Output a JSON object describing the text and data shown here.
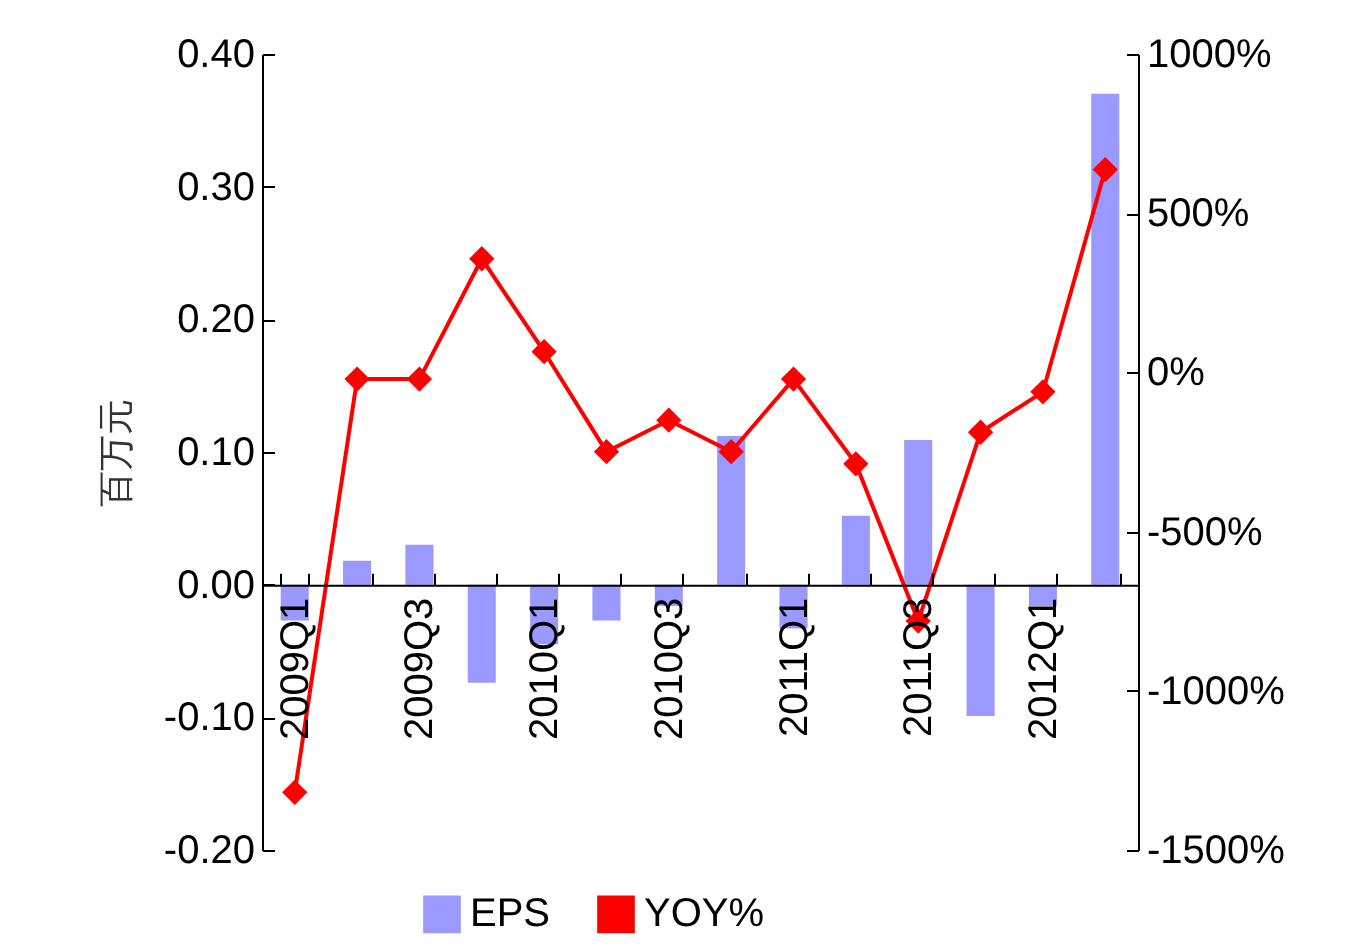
{
  "chart_data": {
    "type": "bar",
    "ylabel": "百万元",
    "categories": [
      "2009Q1",
      null,
      "2009Q3",
      null,
      "2010Q1",
      null,
      "2010Q3",
      null,
      "2011Q1",
      null,
      "2011Q3",
      null,
      "2012Q1",
      null
    ],
    "series": [
      {
        "name": "EPS",
        "color": "#9999ff",
        "values": [
          -0.027,
          0.018,
          0.03,
          -0.074,
          -0.045,
          -0.027,
          -0.016,
          0.112,
          -0.033,
          0.052,
          0.109,
          -0.099,
          -0.016,
          0.37
        ]
      },
      {
        "name": "YOY%",
        "type": "line",
        "axis": "y2",
        "color": "#ff0000",
        "marker": "diamond",
        "line_style": "solid",
        "values": [
          -1319,
          -21,
          -21,
          357,
          65,
          -249,
          -150,
          -249,
          -21,
          -287,
          -781,
          -188,
          -61,
          637
        ]
      }
    ],
    "ylim": [
      -0.2,
      0.4
    ],
    "yticks": [
      {
        "value": -0.2,
        "label": "-0.20"
      },
      {
        "value": -0.1,
        "label": "-0.10"
      },
      {
        "value": 0,
        "label": "0.00"
      },
      {
        "value": 0.1,
        "label": "0.10"
      },
      {
        "value": 0.2,
        "label": "0.20"
      },
      {
        "value": 0.3,
        "label": "0.30"
      },
      {
        "value": 0.4,
        "label": "0.40"
      }
    ],
    "y2lim": [
      -1500,
      1000
    ],
    "y2ticks": [
      {
        "value": -1500,
        "label": "-1500%"
      },
      {
        "value": -1000,
        "label": "-1000%"
      },
      {
        "value": -500,
        "label": "-500%"
      },
      {
        "value": 0,
        "label": "0%"
      },
      {
        "value": 500,
        "label": "500%"
      },
      {
        "value": 1000,
        "label": "1000%"
      }
    ],
    "grid": false,
    "legend": "bottom"
  }
}
